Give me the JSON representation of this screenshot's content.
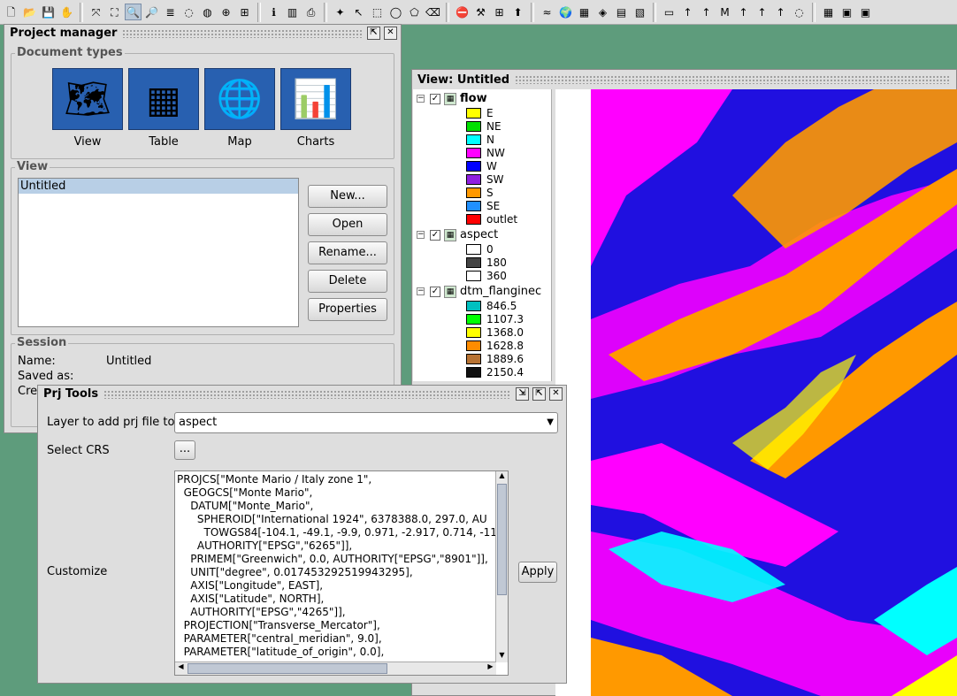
{
  "toolbar": {
    "icons": [
      "new-file",
      "open-folder",
      "save",
      "pan-hand",
      "zoom-extent",
      "zoom-box",
      "zoom-in",
      "zoom-out",
      "layers",
      "zoom-previous",
      "zoom-next",
      "zoom-select",
      "pan-select",
      "info",
      "measure",
      "print",
      "snap",
      "select-arrow",
      "select-box",
      "select-circle",
      "select-poly",
      "select-clear",
      "stop",
      "tools",
      "add-layer",
      "add-point",
      "georef",
      "globe",
      "raster",
      "shapes",
      "table",
      "legend",
      "image",
      "north-arrow",
      "scale",
      "text-m",
      "arrow2",
      "arrow3",
      "arrow4",
      "balloon",
      "grid",
      "extra1",
      "extra2"
    ]
  },
  "project_manager": {
    "title": "Project manager",
    "document_types": {
      "label": "Document types",
      "items": [
        {
          "label": "View",
          "icon": "🗺"
        },
        {
          "label": "Table",
          "icon": "▦"
        },
        {
          "label": "Map",
          "icon": "🌐"
        },
        {
          "label": "Charts",
          "icon": "📊"
        }
      ]
    },
    "view": {
      "label": "View",
      "list": [
        "Untitled"
      ],
      "buttons": {
        "new": "New...",
        "open": "Open",
        "rename": "Rename...",
        "delete": "Delete",
        "properties": "Properties"
      }
    },
    "session": {
      "label": "Session",
      "name_label": "Name:",
      "name_value": "Untitled",
      "saved_label": "Saved as:",
      "created_label": "Cre"
    }
  },
  "view_window": {
    "title": "View: Untitled",
    "layers": [
      {
        "name": "flow",
        "bold": true,
        "legend": [
          {
            "label": "E",
            "color": "#ffff00"
          },
          {
            "label": "NE",
            "color": "#00e000"
          },
          {
            "label": "N",
            "color": "#00ffff"
          },
          {
            "label": "NW",
            "color": "#ff00ff"
          },
          {
            "label": "W",
            "color": "#0000ff"
          },
          {
            "label": "SW",
            "color": "#9020e0"
          },
          {
            "label": "S",
            "color": "#ff9900"
          },
          {
            "label": "SE",
            "color": "#2090ff"
          },
          {
            "label": "outlet",
            "color": "#ff0000"
          }
        ]
      },
      {
        "name": "aspect",
        "bold": false,
        "legend": [
          {
            "label": "0",
            "color": "#ffffff"
          },
          {
            "label": "180",
            "color": "#444444"
          },
          {
            "label": "360",
            "color": "#ffffff"
          }
        ]
      },
      {
        "name": "dtm_flanginec",
        "bold": false,
        "legend": [
          {
            "label": "846.5",
            "color": "#00c0c0"
          },
          {
            "label": "1107.3",
            "color": "#00ff00"
          },
          {
            "label": "1368.0",
            "color": "#ffff00"
          },
          {
            "label": "1628.8",
            "color": "#ff8c00"
          },
          {
            "label": "1889.6",
            "color": "#b87333"
          },
          {
            "label": "2150.4",
            "color": "#111111"
          }
        ]
      }
    ]
  },
  "prj_tools": {
    "title": "Prj Tools",
    "layer_label": "Layer to add prj file to",
    "layer_value": "aspect",
    "crs_label": "Select CRS",
    "crs_button": "...",
    "customize_label": "Customize",
    "apply_label": "Apply",
    "wkt": "PROJCS[\"Monte Mario / Italy zone 1\",\n  GEOGCS[\"Monte Mario\",\n    DATUM[\"Monte_Mario\",\n      SPHEROID[\"International 1924\", 6378388.0, 297.0, AU\n        TOWGS84[-104.1, -49.1, -9.9, 0.971, -2.917, 0.714, -11\n      AUTHORITY[\"EPSG\",\"6265\"]],\n    PRIMEM[\"Greenwich\", 0.0, AUTHORITY[\"EPSG\",\"8901\"]],\n    UNIT[\"degree\", 0.017453292519943295],\n    AXIS[\"Longitude\", EAST],\n    AXIS[\"Latitude\", NORTH],\n    AUTHORITY[\"EPSG\",\"4265\"]],\n  PROJECTION[\"Transverse_Mercator\"],\n  PARAMETER[\"central_meridian\", 9.0],\n  PARAMETER[\"latitude_of_origin\", 0.0],"
  },
  "colors": {
    "desktop": "#5e9c7c",
    "panel": "#dedede"
  }
}
